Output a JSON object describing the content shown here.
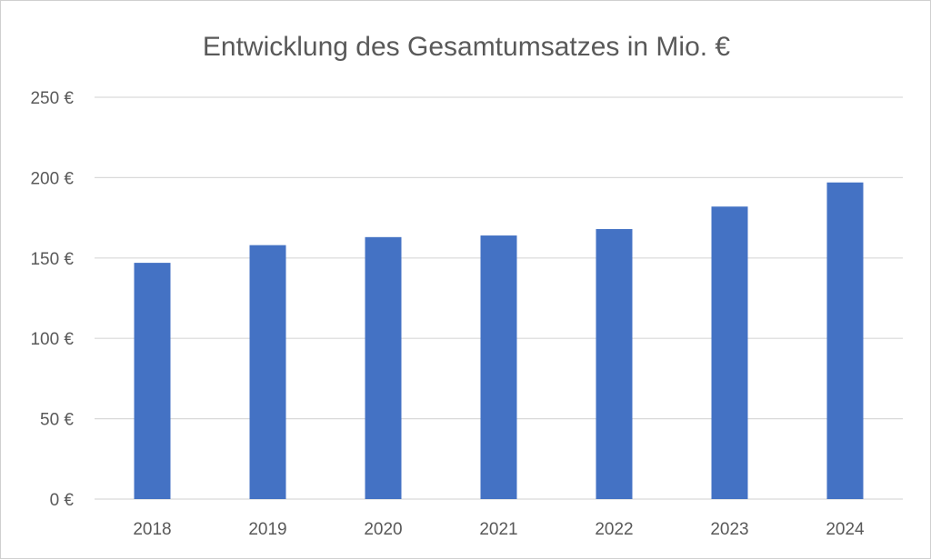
{
  "chart_data": {
    "type": "bar",
    "title": "Entwicklung des Gesamtumsatzes in Mio. €",
    "categories": [
      "2018",
      "2019",
      "2020",
      "2021",
      "2022",
      "2023",
      "2024"
    ],
    "values": [
      147,
      158,
      163,
      164,
      168,
      182,
      197
    ],
    "ylim": [
      0,
      250
    ],
    "yticks": [
      "0 €",
      "50 €",
      "100 €",
      "150 €",
      "200 €",
      "250 €"
    ],
    "ytick_values": [
      0,
      50,
      100,
      150,
      200,
      250
    ],
    "bar_color": "#4472C4",
    "grid": true,
    "legend": "none"
  }
}
